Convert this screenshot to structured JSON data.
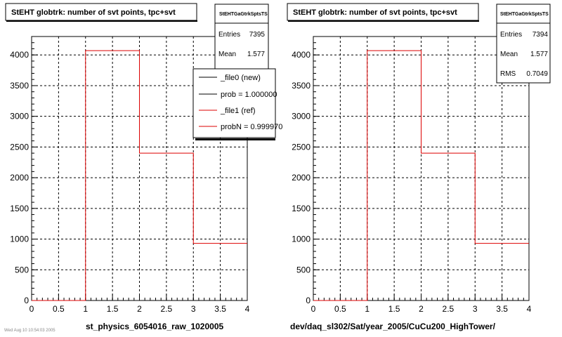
{
  "chart_data": [
    {
      "type": "bar",
      "style": "step-histogram",
      "title": "StEHT globtrk: number of svt points, tpc+svt",
      "xlabel": "st_physics_6054016_raw_1020005",
      "xlim": [
        0,
        4
      ],
      "ylim": [
        0,
        4300
      ],
      "xticks": [
        "0",
        "0.5",
        "1",
        "1.5",
        "2",
        "2.5",
        "3",
        "3.5",
        "4"
      ],
      "yticks": [
        "0",
        "500",
        "1000",
        "1500",
        "2000",
        "2500",
        "3000",
        "3500",
        "4000"
      ],
      "grid": true,
      "bin_edges": [
        0,
        1,
        2,
        3,
        4
      ],
      "series": [
        {
          "name": "_file1 (ref)",
          "color": "#dd0000",
          "values": [
            0,
            4070,
            2400,
            930
          ]
        }
      ],
      "stats": {
        "header": "StEHTGaGtrkSptsTS",
        "rows": [
          {
            "label": "Entries",
            "value": "7395"
          },
          {
            "label": "Mean",
            "value": "1.577"
          }
        ]
      },
      "legend": {
        "position": "top-right",
        "entries": [
          {
            "label": "_file0 (new)",
            "color": "#000000"
          },
          {
            "label": "prob = 1.000000",
            "color": "#000000"
          },
          {
            "label": "_file1 (ref)",
            "color": "#dd0000"
          },
          {
            "label": "probN = 0.999970",
            "color": "#dd0000"
          }
        ]
      }
    },
    {
      "type": "bar",
      "style": "step-histogram",
      "title": "StEHT globtrk: number of svt points, tpc+svt",
      "xlabel": "dev/daq_sl302/Sat/year_2005/CuCu200_HighTower/",
      "xlim": [
        0,
        4
      ],
      "ylim": [
        0,
        4300
      ],
      "xticks": [
        "0",
        "0.5",
        "1",
        "1.5",
        "2",
        "2.5",
        "3",
        "3.5",
        "4"
      ],
      "yticks": [
        "0",
        "500",
        "1000",
        "1500",
        "2000",
        "2500",
        "3000",
        "3500",
        "4000"
      ],
      "grid": true,
      "bin_edges": [
        0,
        1,
        2,
        3,
        4
      ],
      "series": [
        {
          "color": "#dd0000",
          "values": [
            0,
            4070,
            2400,
            930
          ]
        }
      ],
      "stats": {
        "header": "StEHTGaGtrkSptsTS",
        "rows": [
          {
            "label": "Entries",
            "value": "7394"
          },
          {
            "label": "Mean",
            "value": "1.577"
          },
          {
            "label": "RMS",
            "value": "0.7049"
          }
        ]
      }
    }
  ],
  "footer_text": "Wed Aug 10 10:54:03 2005"
}
